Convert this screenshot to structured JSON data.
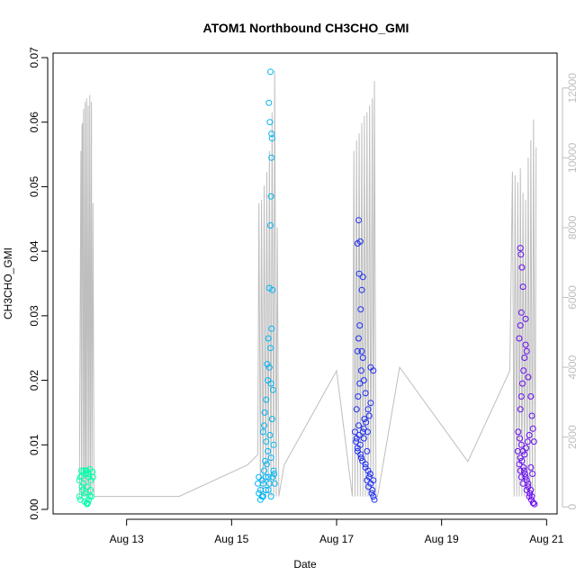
{
  "chart_data": {
    "type": "scatter",
    "title": "ATOM1 Northbound CH3CHO_GMI",
    "xlabel": "Date",
    "ylabel": "CH3CHO_GMI",
    "x_ticks": [
      "Aug 13",
      "Aug 15",
      "Aug 17",
      "Aug 19",
      "Aug 21"
    ],
    "x_tick_days": [
      13,
      15,
      17,
      19,
      21
    ],
    "xlim_days": [
      11.6,
      21.2
    ],
    "ylim": [
      -0.0007,
      0.0707
    ],
    "y_ticks": [
      0.0,
      0.01,
      0.02,
      0.03,
      0.04,
      0.05,
      0.06,
      0.07
    ],
    "y_tick_labels": [
      "0.00",
      "0.01",
      "0.02",
      "0.03",
      "0.04",
      "0.05",
      "0.06",
      "0.07"
    ],
    "y2_label": "",
    "y2lim": [
      -200,
      13000
    ],
    "y2_ticks": [
      0,
      2000,
      4000,
      6000,
      8000,
      10000,
      12000
    ],
    "y2_tick_labels": [
      "0",
      "2000",
      "4000",
      "6000",
      "8000",
      "10000",
      "12000"
    ],
    "grid": false,
    "legend": "none",
    "colors": {
      "flight1": "#00FFAA",
      "flight2": "#00B4F5",
      "flight3": "#1E2EF2",
      "flight4": "#6A0EF2",
      "altitude": "#BEBEBE"
    },
    "series": [
      {
        "color": "flight1",
        "x_days": [
          12.1,
          12.12,
          12.14,
          12.16,
          12.18,
          12.2,
          12.22,
          12.24,
          12.26,
          12.28,
          12.3,
          12.32,
          12.12,
          12.15,
          12.18,
          12.21,
          12.24,
          12.27,
          12.3,
          12.33,
          12.36,
          12.2,
          12.25,
          12.1,
          12.22,
          12.28,
          12.35,
          12.15,
          12.26,
          12.31
        ],
        "y": [
          0.002,
          0.005,
          0.006,
          0.003,
          0.004,
          0.002,
          0.0055,
          0.006,
          0.001,
          0.005,
          0.002,
          0.0045,
          0.0015,
          0.0035,
          0.006,
          0.0025,
          0.001,
          0.0055,
          0.0062,
          0.002,
          0.005,
          0.0012,
          0.0008,
          0.0045,
          0.006,
          0.0015,
          0.0058,
          0.0052,
          0.0035,
          0.003
        ]
      },
      {
        "color": "flight2",
        "x_days": [
          15.5,
          15.52,
          15.55,
          15.58,
          15.6,
          15.62,
          15.65,
          15.67,
          15.7,
          15.72,
          15.75,
          15.78,
          15.8,
          15.82,
          15.55,
          15.6,
          15.65,
          15.7,
          15.75,
          15.8,
          15.6,
          15.63,
          15.66,
          15.69,
          15.72,
          15.74,
          15.76,
          15.78,
          15.72,
          15.74,
          15.75,
          15.76,
          15.77,
          15.73,
          15.71,
          15.74,
          15.76,
          15.7,
          15.68,
          15.75,
          15.62,
          15.66,
          15.69,
          15.73,
          15.77,
          15.79,
          15.64,
          15.58,
          15.52,
          15.81
        ],
        "y": [
          0.004,
          0.005,
          0.003,
          0.002,
          0.004,
          0.006,
          0.005,
          0.007,
          0.003,
          0.004,
          0.002,
          0.005,
          0.006,
          0.004,
          0.0015,
          0.002,
          0.003,
          0.005,
          0.008,
          0.01,
          0.012,
          0.015,
          0.017,
          0.02,
          0.022,
          0.025,
          0.028,
          0.034,
          0.0343,
          0.044,
          0.0485,
          0.0545,
          0.0575,
          0.06,
          0.063,
          0.0678,
          0.0582,
          0.0265,
          0.0225,
          0.0195,
          0.013,
          0.0105,
          0.009,
          0.0115,
          0.014,
          0.0185,
          0.0075,
          0.0045,
          0.0025,
          0.0055
        ]
      },
      {
        "color": "flight3",
        "x_days": [
          17.35,
          17.38,
          17.4,
          17.42,
          17.45,
          17.47,
          17.5,
          17.52,
          17.55,
          17.58,
          17.6,
          17.62,
          17.65,
          17.68,
          17.7,
          17.72,
          17.37,
          17.4,
          17.43,
          17.46,
          17.49,
          17.52,
          17.55,
          17.58,
          17.61,
          17.64,
          17.67,
          17.7,
          17.38,
          17.41,
          17.44,
          17.47,
          17.5,
          17.53,
          17.56,
          17.59,
          17.62,
          17.65,
          17.4,
          17.42,
          17.44,
          17.46,
          17.48,
          17.5,
          17.4,
          17.42,
          17.45,
          17.43,
          17.48,
          17.52,
          17.55,
          17.6,
          17.65,
          17.7
        ],
        "y": [
          0.012,
          0.011,
          0.009,
          0.013,
          0.01,
          0.008,
          0.012,
          0.011,
          0.007,
          0.009,
          0.006,
          0.005,
          0.004,
          0.003,
          0.002,
          0.0015,
          0.0105,
          0.0095,
          0.0115,
          0.0085,
          0.0075,
          0.0125,
          0.0065,
          0.0045,
          0.0035,
          0.0055,
          0.0025,
          0.0045,
          0.0155,
          0.0175,
          0.0195,
          0.0215,
          0.0235,
          0.014,
          0.0135,
          0.012,
          0.0145,
          0.0165,
          0.0245,
          0.0265,
          0.0285,
          0.031,
          0.034,
          0.036,
          0.0412,
          0.0448,
          0.0415,
          0.0365,
          0.0245,
          0.02,
          0.018,
          0.0155,
          0.022,
          0.0215
        ]
      },
      {
        "color": "flight4",
        "x_days": [
          20.45,
          20.48,
          20.5,
          20.52,
          20.55,
          20.57,
          20.6,
          20.62,
          20.65,
          20.67,
          20.7,
          20.72,
          20.75,
          20.5,
          20.53,
          20.56,
          20.59,
          20.62,
          20.65,
          20.68,
          20.71,
          20.74,
          20.77,
          20.46,
          20.49,
          20.52,
          20.55,
          20.58,
          20.61,
          20.64,
          20.67,
          20.7,
          20.73,
          20.5,
          20.52,
          20.54,
          20.56,
          20.58,
          20.6,
          20.62,
          20.48,
          20.5,
          20.52,
          20.5,
          20.51,
          20.53,
          20.55,
          20.6,
          20.65,
          20.7,
          20.72,
          20.74,
          20.76
        ],
        "y": [
          0.009,
          0.007,
          0.006,
          0.005,
          0.004,
          0.006,
          0.005,
          0.003,
          0.004,
          0.002,
          0.003,
          0.002,
          0.001,
          0.008,
          0.0075,
          0.0065,
          0.0055,
          0.0045,
          0.0035,
          0.0025,
          0.0015,
          0.001,
          0.0008,
          0.012,
          0.011,
          0.01,
          0.009,
          0.0085,
          0.0095,
          0.0105,
          0.0115,
          0.0065,
          0.0055,
          0.0155,
          0.0175,
          0.0195,
          0.0215,
          0.0235,
          0.0255,
          0.0245,
          0.0265,
          0.0285,
          0.0305,
          0.0405,
          0.0395,
          0.0375,
          0.0345,
          0.0295,
          0.0205,
          0.0175,
          0.0145,
          0.0125,
          0.0105
        ]
      }
    ],
    "altitude_series": {
      "color": "altitude",
      "x_days": [
        12.08,
        12.09,
        12.1,
        12.13,
        12.14,
        12.15,
        12.16,
        12.17,
        12.18,
        12.2,
        12.21,
        12.22,
        12.24,
        12.25,
        12.27,
        12.28,
        12.3,
        12.31,
        12.33,
        12.34,
        12.36,
        12.38,
        12.39,
        12.4,
        12.42,
        12.5,
        13.0,
        14.0,
        15.3,
        15.5,
        15.52,
        15.55,
        15.57,
        15.6,
        15.62,
        15.65,
        15.67,
        15.7,
        15.72,
        15.75,
        15.77,
        15.8,
        15.82,
        15.85,
        15.87,
        15.9,
        16.0,
        17.0,
        17.3,
        17.33,
        17.35,
        17.38,
        17.4,
        17.43,
        17.45,
        17.48,
        17.5,
        17.53,
        17.55,
        17.58,
        17.6,
        17.63,
        17.65,
        17.68,
        17.7,
        17.72,
        17.75,
        17.78,
        18.2,
        19.5,
        20.3,
        20.35,
        20.38,
        20.4,
        20.43,
        20.45,
        20.48,
        20.5,
        20.53,
        20.55,
        20.58,
        20.6,
        20.63,
        20.65,
        20.68,
        20.7,
        20.73,
        20.75,
        20.78,
        20.8
      ],
      "y": [
        300,
        300,
        300,
        10200,
        300,
        10900,
        11000,
        300,
        11400,
        300,
        11600,
        300,
        11700,
        300,
        11500,
        300,
        11800,
        300,
        11600,
        300,
        8700,
        300,
        300,
        300,
        300,
        300,
        300,
        300,
        1200,
        1500,
        8700,
        300,
        8800,
        300,
        9200,
        300,
        9600,
        300,
        10200,
        300,
        11300,
        300,
        12500,
        300,
        8000,
        300,
        1200,
        3900,
        300,
        10200,
        300,
        10500,
        300,
        10700,
        300,
        11000,
        300,
        11200,
        300,
        11300,
        300,
        11500,
        300,
        11700,
        300,
        12200,
        300,
        300,
        4000,
        1300,
        3900,
        9600,
        300,
        9500,
        300,
        9300,
        300,
        9700,
        300,
        9000,
        300,
        8800,
        300,
        10000,
        300,
        10500,
        300,
        11100,
        300,
        10300
      ]
    }
  }
}
